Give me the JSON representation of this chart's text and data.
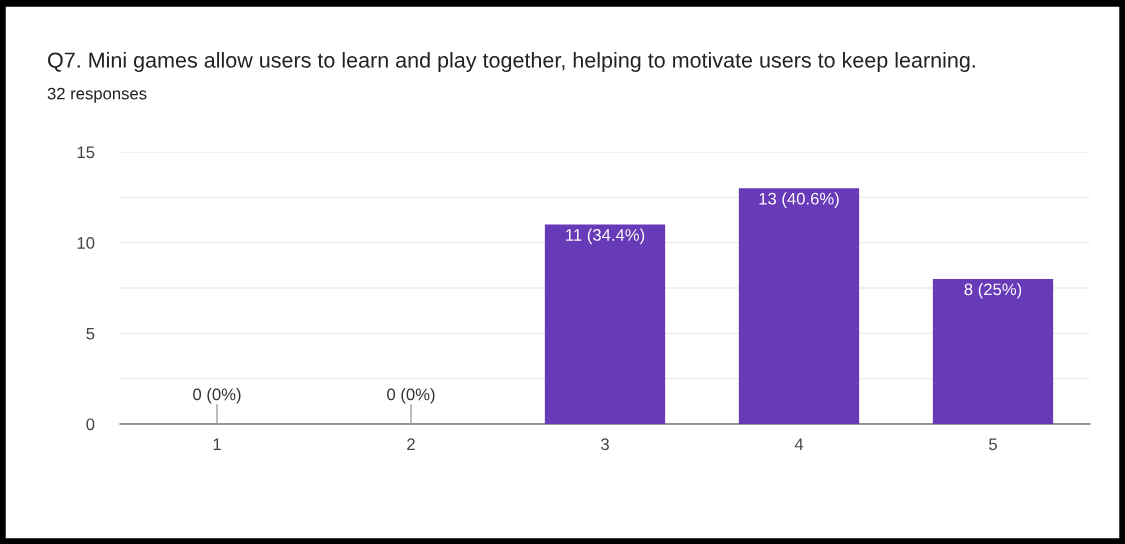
{
  "chart_data": {
    "type": "bar",
    "title": "Q7. Mini games allow users to learn and play together, helping to motivate users to keep learning.",
    "subtitle": "32 responses",
    "categories": [
      "1",
      "2",
      "3",
      "4",
      "5"
    ],
    "values": [
      0,
      0,
      11,
      13,
      8
    ],
    "value_labels": [
      "0 (0%)",
      "0 (0%)",
      "11 (34.4%)",
      "13 (40.6%)",
      "8 (25%)"
    ],
    "color": "#673ab7",
    "ylim": [
      0,
      15
    ],
    "yticks": [
      0,
      {
        "value": 2.5,
        "label": null
      },
      5,
      {
        "value": 7.5,
        "label": null
      },
      10,
      {
        "value": 12.5,
        "label": null
      },
      15
    ],
    "grid": "y",
    "legend": false
  }
}
